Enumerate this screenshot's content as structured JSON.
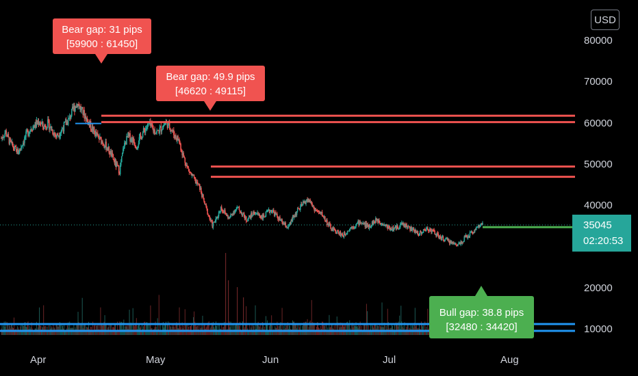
{
  "currency_badge": "USD",
  "price_axis": {
    "ticks": [
      "80000",
      "70000",
      "60000",
      "50000",
      "40000",
      "20000",
      "10000"
    ]
  },
  "time_axis": {
    "ticks": [
      "Apr",
      "May",
      "Jun",
      "Jul",
      "Aug"
    ]
  },
  "last_price": {
    "value": "35045",
    "countdown": "02:20:53"
  },
  "annotations": [
    {
      "kind": "bear",
      "title": "Bear gap: 31 pips",
      "range": "[59900 : 61450]"
    },
    {
      "kind": "bear",
      "title": "Bear gap: 49.9 pips",
      "range": "[46620 : 49115]"
    },
    {
      "kind": "bull",
      "title": "Bull gap: 38.8 pips",
      "range": "[32480 : 34420]"
    }
  ],
  "colors": {
    "bear": "#f05350",
    "bull": "#4caf50",
    "support_line": "#2196f3",
    "last_price_tag": "#26a69a",
    "candle_up": "#26a69a",
    "candle_down": "#ef5350"
  },
  "chart_data": {
    "type": "candlestick",
    "y_scale": "linear",
    "ylim": [
      5000,
      85000
    ],
    "gap_levels": {
      "bear_gap_1": [
        59900,
        61450
      ],
      "bear_gap_2": [
        46620,
        49115
      ],
      "bull_gap": [
        32480,
        34420
      ]
    },
    "support_lines": [
      11000,
      9500
    ],
    "close_series": [
      56000,
      57500,
      55000,
      53500,
      52500,
      54800,
      57000,
      58500,
      59200,
      60100,
      58700,
      59600,
      58000,
      56500,
      57600,
      59200,
      60500,
      63000,
      64500,
      62800,
      61000,
      59200,
      57500,
      56000,
      55100,
      53800,
      52000,
      49800,
      48000,
      54000,
      56500,
      55800,
      54200,
      56300,
      58200,
      59300,
      58000,
      57500,
      58600,
      59800,
      58700,
      56700,
      55600,
      52000,
      49000,
      47000,
      45500,
      44000,
      40500,
      37500,
      34800,
      36500,
      39200,
      37800,
      36500,
      38300,
      39000,
      37800,
      36200,
      37100,
      38000,
      37400,
      36800,
      37900,
      38600,
      37400,
      36100,
      35000,
      34300,
      36500,
      38200,
      39400,
      40700,
      40900,
      39000,
      38000,
      37500,
      35800,
      34200,
      33500,
      33000,
      32400,
      33600,
      34500,
      35000,
      35700,
      35100,
      34600,
      35500,
      36200,
      35600,
      34800,
      34200,
      34000,
      34600,
      35200,
      34700,
      33900,
      33400,
      32900,
      33500,
      34100,
      33600,
      32700,
      31800,
      31500,
      31000,
      30500,
      30200,
      30900,
      32000,
      32800,
      33600,
      34600,
      35045
    ]
  }
}
